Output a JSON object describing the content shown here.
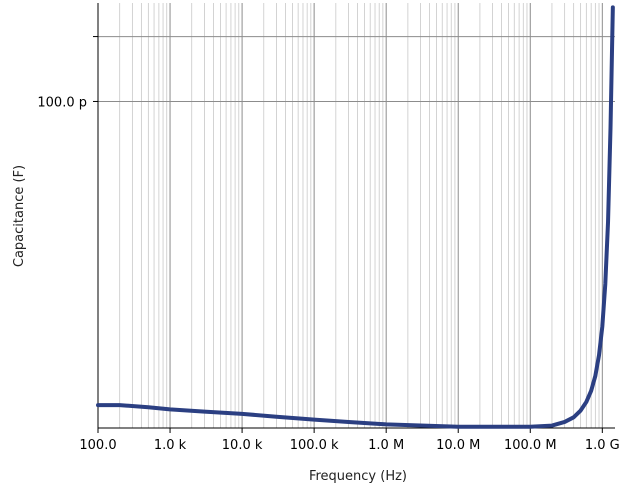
{
  "chart_data": {
    "type": "line",
    "xlabel": "Frequency (Hz)",
    "ylabel": "Capacitance (F)",
    "x_scale": "log",
    "y_scale": "log",
    "xlim": [
      100,
      1500000000
    ],
    "ylim": [
      1.3e-11,
      1.85e-10
    ],
    "grid": true,
    "x_ticks": [
      {
        "value": 100,
        "label": "100.0"
      },
      {
        "value": 1000,
        "label": "1.0 k"
      },
      {
        "value": 10000,
        "label": "10.0 k"
      },
      {
        "value": 100000,
        "label": "100.0 k"
      },
      {
        "value": 1000000,
        "label": "1.0 M"
      },
      {
        "value": 10000000,
        "label": "10.0 M"
      },
      {
        "value": 100000000,
        "label": "100.0 M"
      },
      {
        "value": 1000000000,
        "label": "1.0 G"
      }
    ],
    "y_ticks": [
      {
        "value": 1e-10,
        "label": "100.0 p"
      },
      {
        "value": 1.5e-10,
        "label": ""
      }
    ],
    "series": [
      {
        "color": "#2b3f82",
        "x": [
          100,
          200,
          500,
          1000,
          3000,
          10000,
          30000,
          100000,
          300000,
          1000000,
          3000000,
          10000000,
          30000000,
          100000000,
          200000000,
          300000000,
          400000000,
          500000000,
          600000000,
          700000000,
          800000000,
          900000000,
          1000000000,
          1100000000,
          1200000000,
          1300000000,
          1400000000
        ],
        "y": [
          1.5e-11,
          1.5e-11,
          1.48e-11,
          1.46e-11,
          1.44e-11,
          1.42e-11,
          1.395e-11,
          1.37e-11,
          1.35e-11,
          1.33e-11,
          1.32e-11,
          1.31e-11,
          1.31e-11,
          1.31e-11,
          1.32e-11,
          1.35e-11,
          1.39e-11,
          1.45e-11,
          1.53e-11,
          1.64e-11,
          1.8e-11,
          2.05e-11,
          2.45e-11,
          3.2e-11,
          4.7e-11,
          8.5e-11,
          1.8e-10
        ]
      }
    ]
  }
}
